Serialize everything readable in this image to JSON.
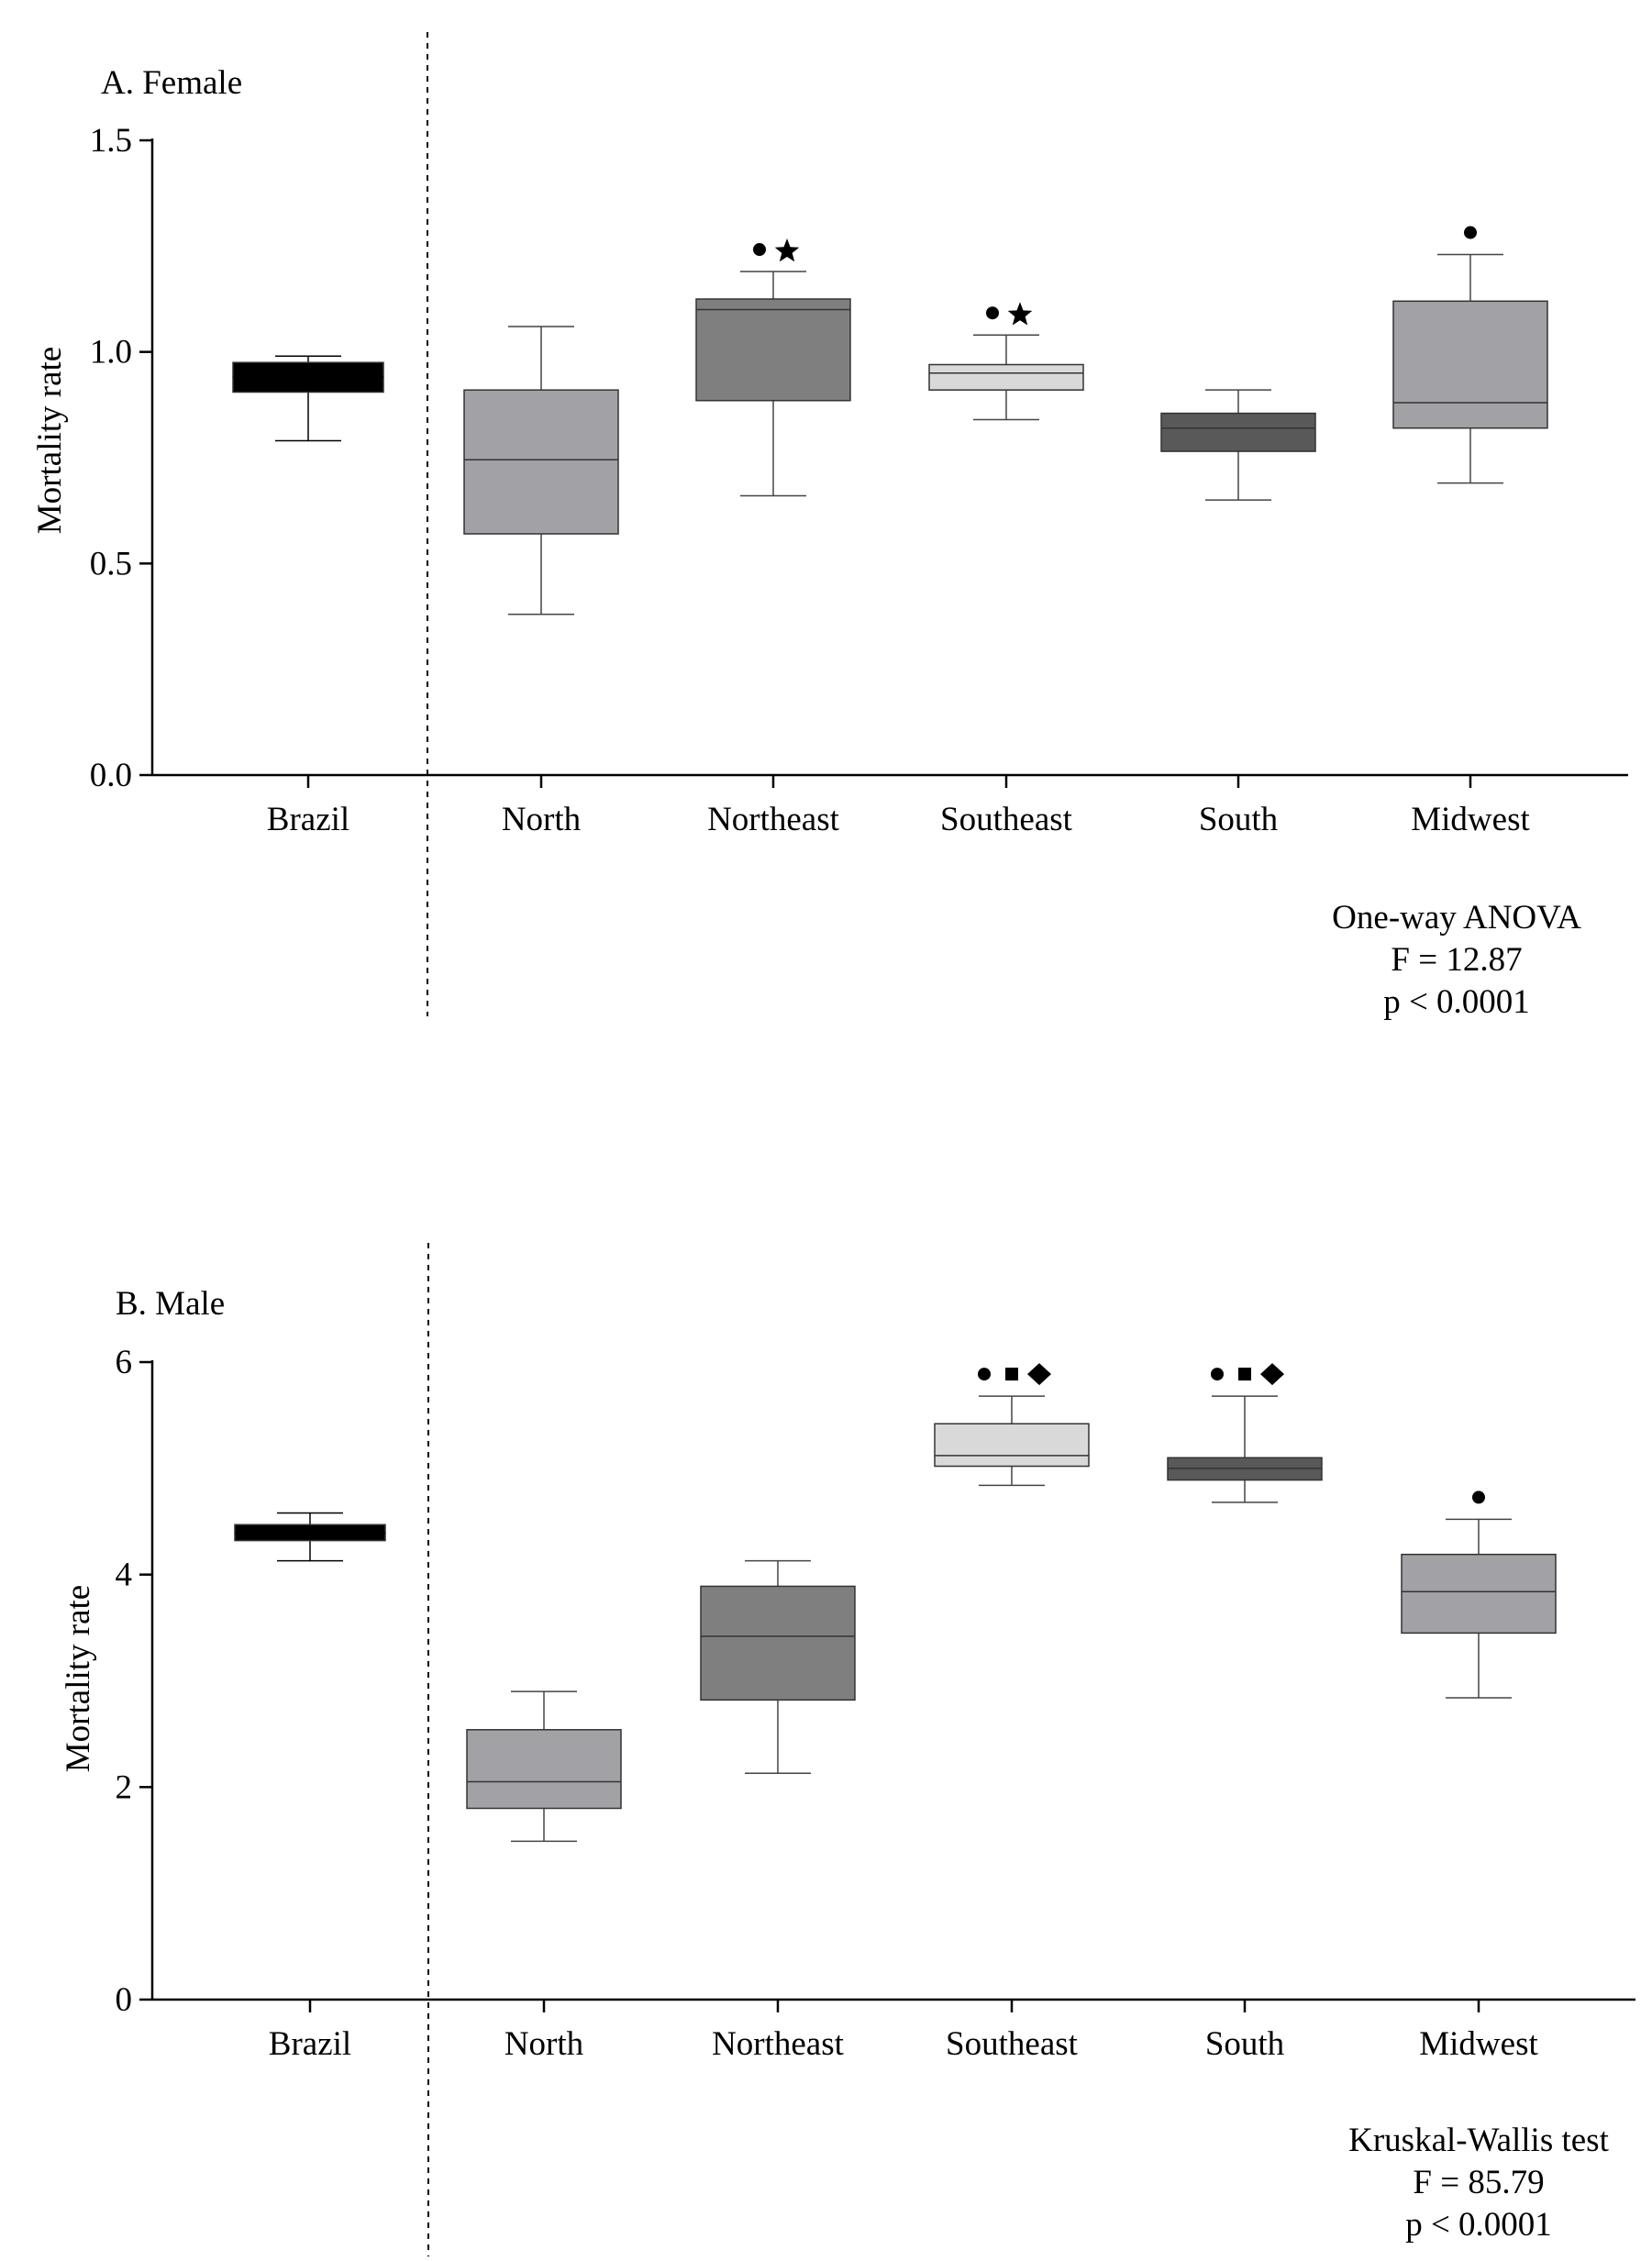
{
  "chart_data": [
    {
      "type": "box",
      "panel_title": "A.  Female",
      "ylabel": "Mortality rate",
      "xlabel": "",
      "ylim": [
        0,
        1.5
      ],
      "yticks": [
        0.0,
        0.5,
        1.0,
        1.5
      ],
      "ytick_labels": [
        "0.0",
        "0.5",
        "1.0",
        "1.5"
      ],
      "categories": [
        "Brazil",
        "North",
        "Northeast",
        "Southeast",
        "South",
        "Midwest"
      ],
      "boxes": [
        {
          "name": "Brazil",
          "min": 0.79,
          "q1": 0.905,
          "median": 0.94,
          "q3": 0.975,
          "max": 0.99,
          "color": "#000000",
          "markers": []
        },
        {
          "name": "North",
          "min": 0.38,
          "q1": 0.57,
          "median": 0.745,
          "q3": 0.91,
          "max": 1.06,
          "color": "#a2a1a6",
          "markers": []
        },
        {
          "name": "Northeast",
          "min": 0.66,
          "q1": 0.885,
          "median": 1.1,
          "q3": 1.125,
          "max": 1.19,
          "color": "#7f7f7f",
          "markers": [
            "circle",
            "star"
          ]
        },
        {
          "name": "Southeast",
          "min": 0.84,
          "q1": 0.91,
          "median": 0.95,
          "q3": 0.97,
          "max": 1.04,
          "color": "#d9d9d9",
          "markers": [
            "circle",
            "star"
          ]
        },
        {
          "name": "South",
          "min": 0.65,
          "q1": 0.765,
          "median": 0.82,
          "q3": 0.855,
          "max": 0.91,
          "color": "#595959",
          "markers": []
        },
        {
          "name": "Midwest",
          "min": 0.69,
          "q1": 0.82,
          "median": 0.88,
          "q3": 1.12,
          "max": 1.23,
          "color": "#a2a1a6",
          "markers": [
            "circle"
          ]
        }
      ],
      "stat_lines": [
        "One-way ANOVA",
        "F = 12.87",
        "p < 0.0001"
      ]
    },
    {
      "type": "box",
      "panel_title": "B.  Male",
      "ylabel": "Mortality rate",
      "xlabel": "",
      "ylim": [
        0,
        6
      ],
      "yticks": [
        0,
        2,
        4,
        6
      ],
      "ytick_labels": [
        "0",
        "2",
        "4",
        "6"
      ],
      "categories": [
        "Brazil",
        "North",
        "Northeast",
        "Southeast",
        "South",
        "Midwest"
      ],
      "boxes": [
        {
          "name": "Brazil",
          "min": 4.13,
          "q1": 4.32,
          "median": 4.39,
          "q3": 4.47,
          "max": 4.58,
          "color": "#000000",
          "markers": []
        },
        {
          "name": "North",
          "min": 1.49,
          "q1": 1.8,
          "median": 2.05,
          "q3": 2.54,
          "max": 2.9,
          "color": "#a2a1a6",
          "markers": []
        },
        {
          "name": "Northeast",
          "min": 2.13,
          "q1": 2.82,
          "median": 3.42,
          "q3": 3.89,
          "max": 4.13,
          "color": "#7f7f7f",
          "markers": []
        },
        {
          "name": "Southeast",
          "min": 4.84,
          "q1": 5.02,
          "median": 5.12,
          "q3": 5.42,
          "max": 5.68,
          "color": "#d9d9d9",
          "markers": [
            "circle",
            "square",
            "diamond"
          ]
        },
        {
          "name": "South",
          "min": 4.68,
          "q1": 4.89,
          "median": 5.0,
          "q3": 5.1,
          "max": 5.68,
          "color": "#595959",
          "markers": [
            "circle",
            "square",
            "diamond"
          ]
        },
        {
          "name": "Midwest",
          "min": 2.84,
          "q1": 3.45,
          "median": 3.84,
          "q3": 4.19,
          "max": 4.52,
          "color": "#a2a1a6",
          "markers": [
            "circle"
          ]
        }
      ],
      "stat_lines": [
        "Kruskal-Wallis test",
        "F = 85.79",
        "p < 0.0001"
      ]
    }
  ]
}
